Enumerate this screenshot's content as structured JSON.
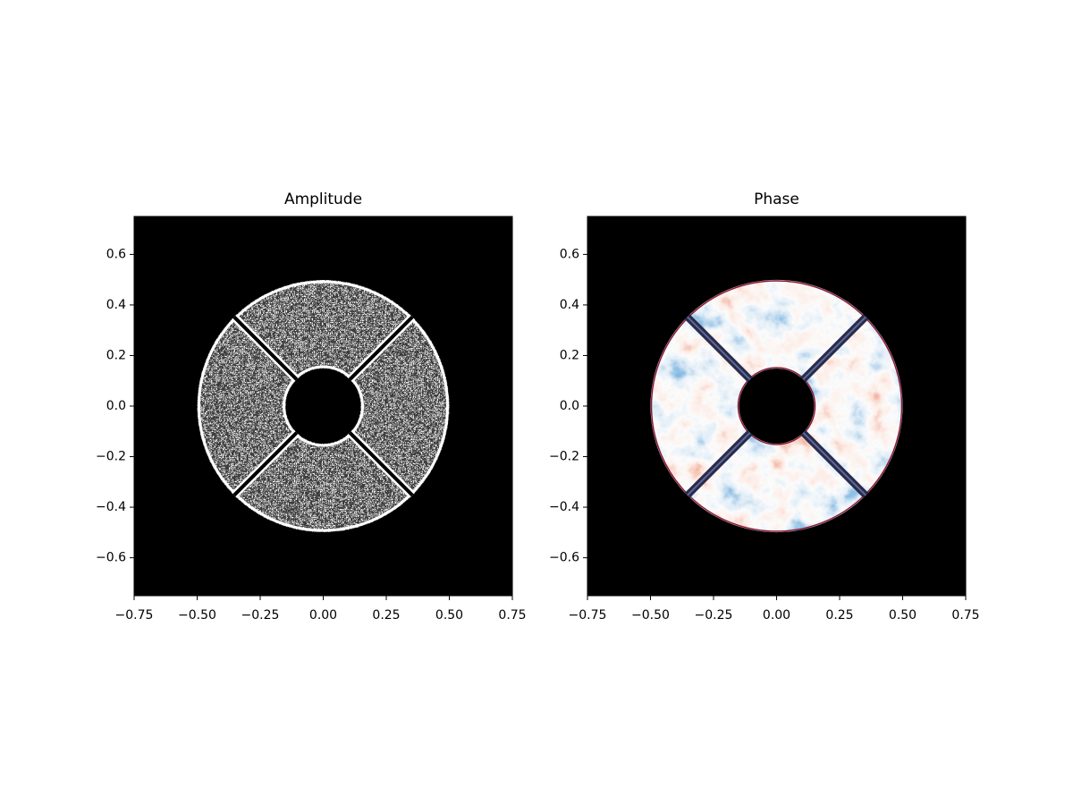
{
  "chart_data": [
    {
      "type": "image",
      "title": "Amplitude",
      "xlim": [
        -0.75,
        0.75
      ],
      "ylim": [
        -0.75,
        0.75
      ],
      "xticks": [
        {
          "value": -0.75,
          "label": "−0.75"
        },
        {
          "value": -0.5,
          "label": "−0.50"
        },
        {
          "value": -0.25,
          "label": "−0.25"
        },
        {
          "value": 0,
          "label": "0.00"
        },
        0.25,
        {
          "value": 0.5,
          "label": "0.50"
        },
        0.75
      ],
      "yticks": [
        {
          "value": -0.6,
          "label": "−0.6"
        },
        {
          "value": -0.4,
          "label": "−0.4"
        },
        {
          "value": -0.2,
          "label": "−0.2"
        },
        {
          "value": 0,
          "label": "0.0"
        },
        0.2,
        0.4,
        0.6
      ]
    },
    {
      "type": "image",
      "title": "Phase",
      "xlim": [
        -0.75,
        0.75
      ],
      "ylim": [
        -0.75,
        0.75
      ],
      "xticks": [
        {
          "value": -0.75,
          "label": "−0.75"
        },
        {
          "value": -0.5,
          "label": "−0.50"
        },
        {
          "value": -0.25,
          "label": "−0.25"
        },
        {
          "value": 0,
          "label": "0.00"
        },
        0.25,
        {
          "value": 0.5,
          "label": "0.50"
        },
        0.75
      ],
      "yticks": [
        {
          "value": -0.6,
          "label": "−0.6"
        },
        {
          "value": -0.4,
          "label": "−0.4"
        },
        {
          "value": -0.2,
          "label": "−0.2"
        },
        {
          "value": 0,
          "label": "0.0"
        },
        0.2,
        0.4,
        0.6
      ]
    }
  ]
}
